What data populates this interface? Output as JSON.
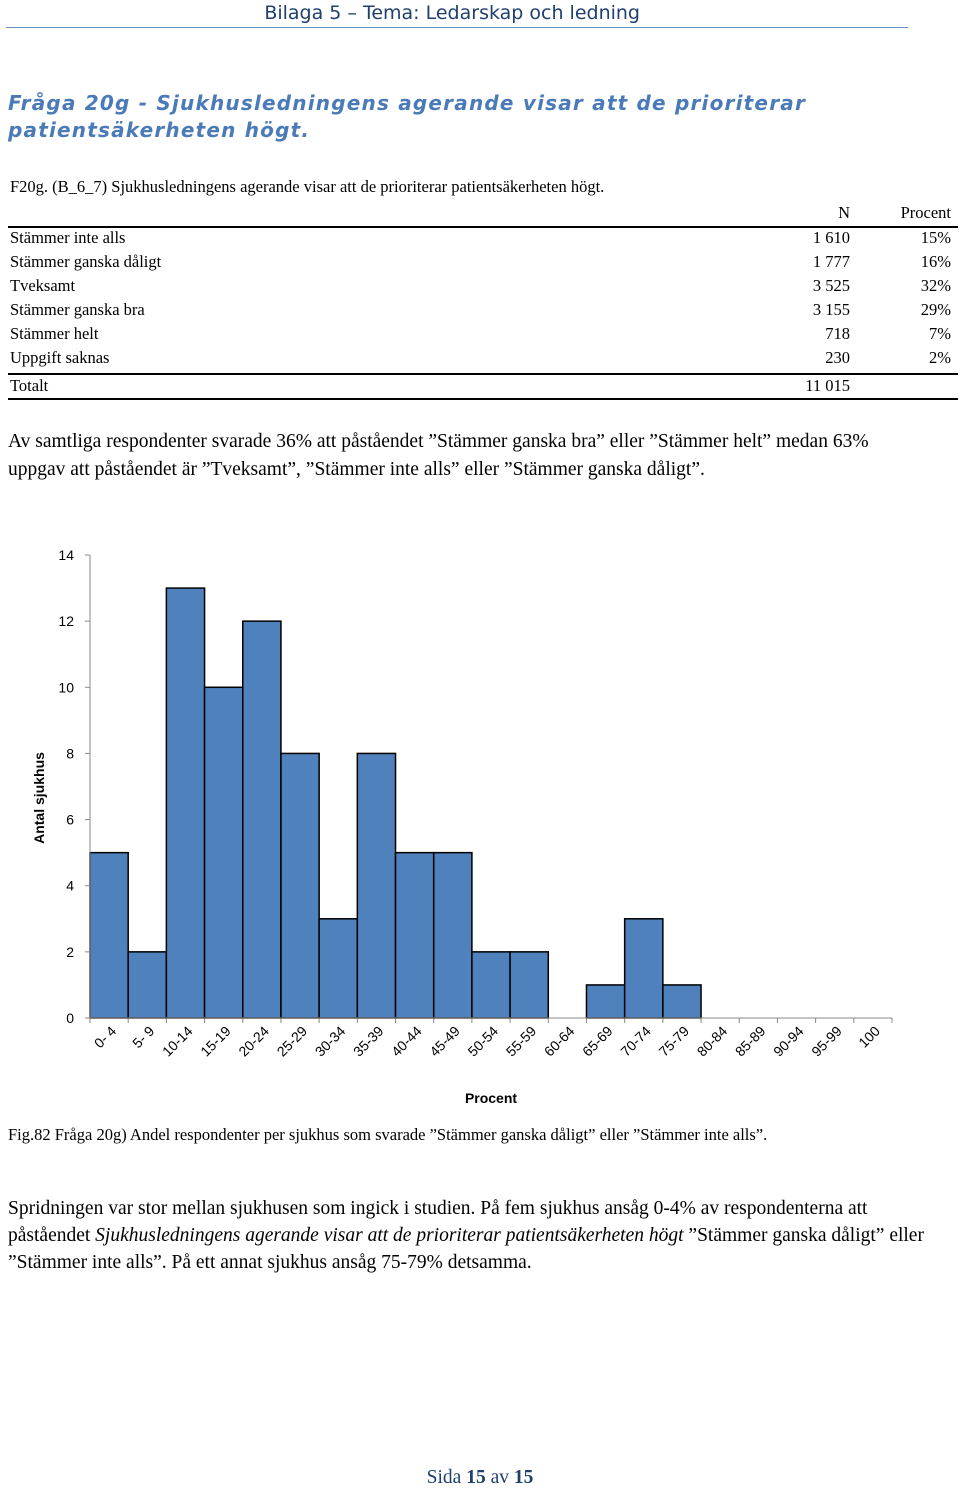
{
  "header": {
    "title": "Bilaga 5 – Tema: Ledarskap och ledning"
  },
  "question_title": "Fråga 20g - Sjukhusledningens agerande visar att de prioriterar patientsäkerheten högt.",
  "table": {
    "caption": "F20g. (B_6_7) Sjukhusledningens agerande visar att de prioriterar patientsäkerheten högt.",
    "col_n": "N",
    "col_pct": "Procent",
    "rows": [
      {
        "label": "Stämmer inte alls",
        "n": "1 610",
        "pct": "15%"
      },
      {
        "label": "Stämmer ganska dåligt",
        "n": "1 777",
        "pct": "16%"
      },
      {
        "label": "Tveksamt",
        "n": "3 525",
        "pct": "32%"
      },
      {
        "label": "Stämmer ganska bra",
        "n": "3 155",
        "pct": "29%"
      },
      {
        "label": "Stämmer helt",
        "n": "718",
        "pct": "7%"
      },
      {
        "label": "Uppgift saknas",
        "n": "230",
        "pct": "2%"
      }
    ],
    "total": {
      "label": "Totalt",
      "n": "11 015"
    }
  },
  "paragraph1": "Av samtliga respondenter svarade 36% att påståendet ”Stämmer ganska bra” eller ”Stämmer helt” medan 63% uppgav att påståendet är ”Tveksamt”, ”Stämmer inte alls” eller ”Stämmer ganska dåligt”.",
  "chart_data": {
    "type": "bar",
    "xlabel": "Procent",
    "ylabel": "Antal sjukhus",
    "ylim": [
      0,
      14
    ],
    "yticks": [
      0,
      2,
      4,
      6,
      8,
      10,
      12,
      14
    ],
    "categories": [
      "0- 4",
      "5- 9",
      "10-14",
      "15-19",
      "20-24",
      "25-29",
      "30-34",
      "35-39",
      "40-44",
      "45-49",
      "50-54",
      "55-59",
      "60-64",
      "65-69",
      "70-74",
      "75-79",
      "80-84",
      "85-89",
      "90-94",
      "95-99",
      "100"
    ],
    "values": [
      5,
      2,
      13,
      10,
      12,
      8,
      3,
      8,
      5,
      5,
      2,
      2,
      0,
      1,
      3,
      1,
      0,
      0,
      0,
      0,
      0
    ],
    "bar_color": "#4f81bd",
    "grid": false,
    "legend": "none"
  },
  "figure_caption": "Fig.82 Fråga 20g) Andel respondenter per sjukhus som svarade ”Stämmer ganska dåligt” eller ”Stämmer inte alls”.",
  "paragraph2": {
    "part1": "Spridningen var stor mellan sjukhusen som ingick i studien. På fem sjukhus ansåg 0-4% av respondenterna att påståendet ",
    "italic": "Sjukhusledningens agerande visar att de prioriterar patientsäkerheten högt",
    "part2": " ”Stämmer ganska dåligt” eller ”Stämmer inte alls”. På ett annat sjukhus ansåg 75-79% detsamma."
  },
  "footer": {
    "prefix": "Sida",
    "page": "15",
    "mid": "av",
    "total": "15"
  }
}
